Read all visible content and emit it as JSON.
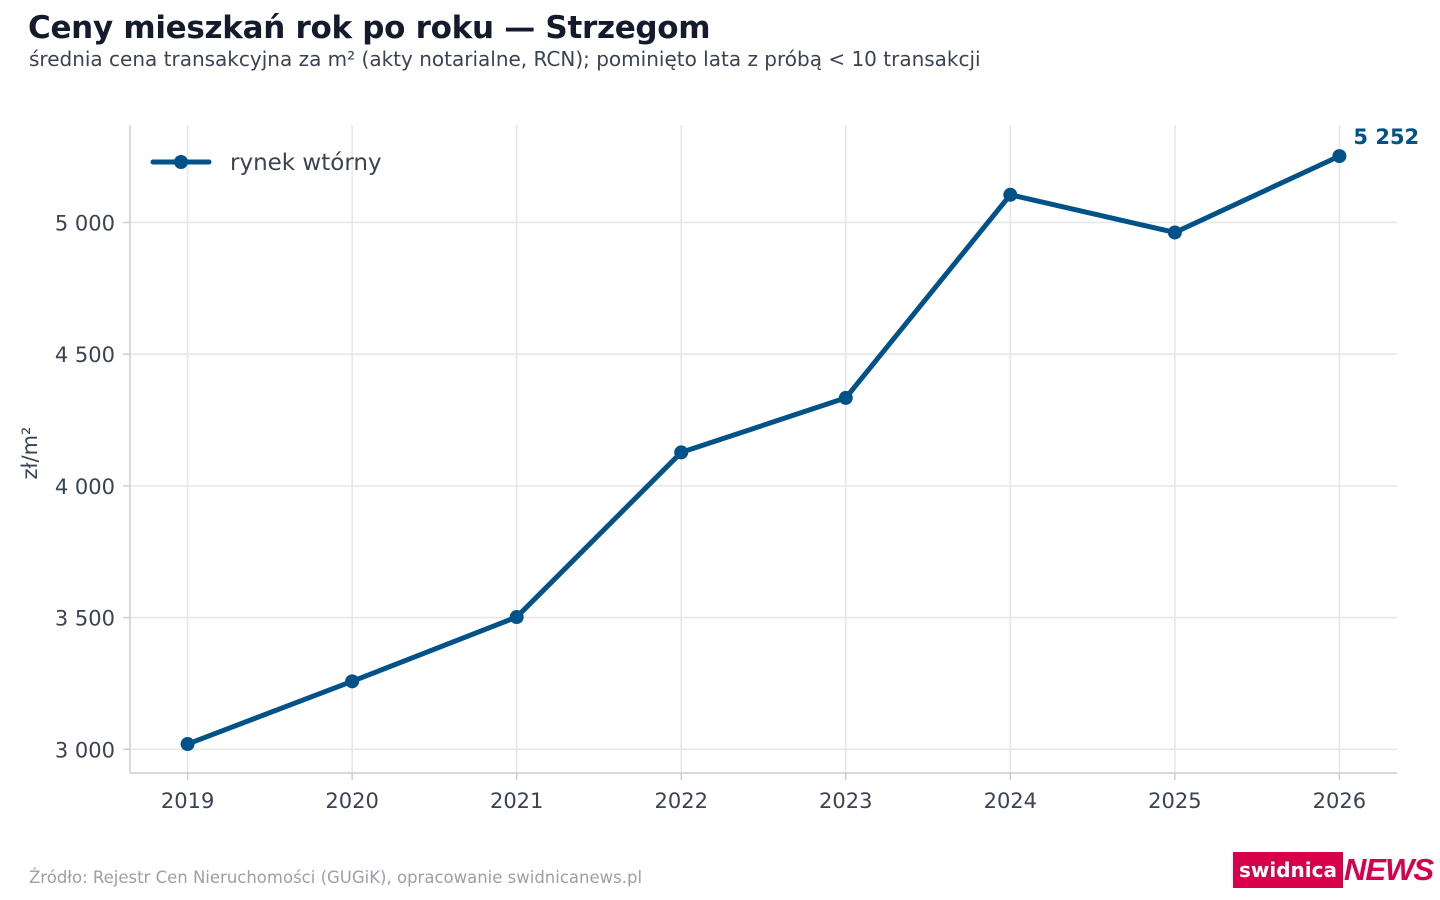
{
  "header": {
    "title": "Ceny mieszkań rok po roku — Strzegom",
    "subtitle": "średnia cena transakcyjna za m² (akty notarialne, RCN); pominięto lata z próbą < 10 transakcji"
  },
  "footer": {
    "source": "Źródło: Rejestr Cen Nieruchomości (GUGiK), opracowanie swidnicanews.pl",
    "logo_part1": "swidnica",
    "logo_part2": "NEWS"
  },
  "colors": {
    "series": "#02528a",
    "grid": "#e6e7ea",
    "axis": "#c9ccd2",
    "logo": "#d8004a"
  },
  "chart_data": {
    "type": "line",
    "title": "Ceny mieszkań rok po roku — Strzegom",
    "xlabel": "",
    "ylabel": "zł/m²",
    "x": [
      2019,
      2020,
      2021,
      2022,
      2023,
      2024,
      2025,
      2026
    ],
    "x_tick_labels": [
      "2019",
      "2020",
      "2021",
      "2022",
      "2023",
      "2024",
      "2025",
      "2026"
    ],
    "y_ticks": [
      3000,
      3500,
      4000,
      4500,
      5000
    ],
    "y_tick_labels": [
      "3 000",
      "3 500",
      "4 000",
      "4 500",
      "5 000"
    ],
    "ylim": [
      2910,
      5370
    ],
    "xlim": [
      2018.65,
      2026.35
    ],
    "grid": true,
    "legend_position": "top-left",
    "series": [
      {
        "name": "rynek wtórny",
        "values": [
          3020,
          3258,
          3502,
          4127,
          4334,
          5105,
          4962,
          5252
        ]
      }
    ],
    "annotations": [
      {
        "x": 2026,
        "y": 5252,
        "text": "5 252"
      }
    ]
  }
}
